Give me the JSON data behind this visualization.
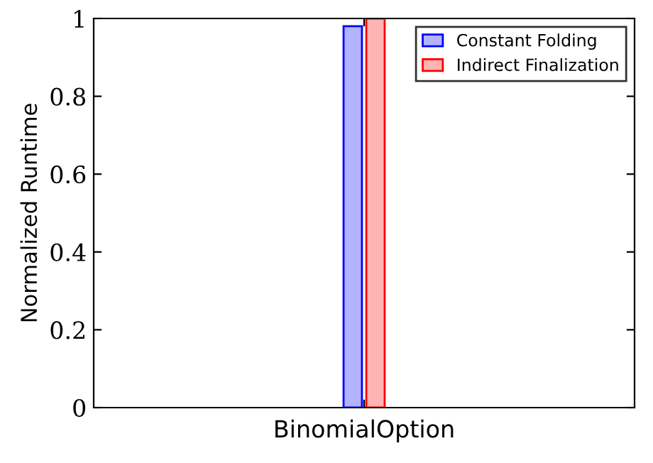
{
  "chart_data": {
    "type": "bar",
    "ylabel": "Normalized Runtime",
    "categories": [
      "BinomialOption"
    ],
    "series": [
      {
        "name": "Constant Folding",
        "color": "#b3b3ff",
        "values": [
          0.98
        ]
      },
      {
        "name": "Indirect Finalization",
        "color": "#ffb3b3",
        "values": [
          1.0
        ]
      }
    ],
    "ylim": [
      0,
      1
    ],
    "yticks": [
      0,
      0.2,
      0.4,
      0.6,
      0.8,
      1
    ],
    "legend": "top right",
    "grid": false
  }
}
